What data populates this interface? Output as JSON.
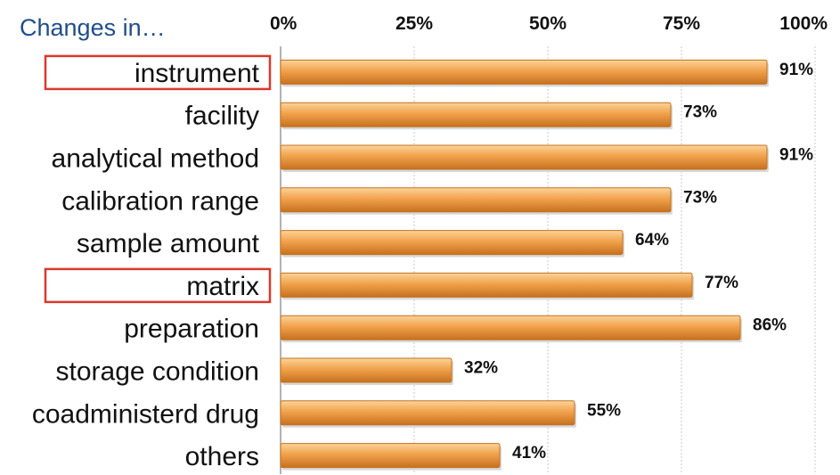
{
  "chart_data": {
    "type": "bar",
    "orientation": "horizontal",
    "title": "Changes in…",
    "categories": [
      "instrument",
      "facility",
      "analytical method",
      "calibration range",
      "sample amount",
      "matrix",
      "preparation",
      "storage condition",
      "coadministerd drug",
      "others"
    ],
    "values": [
      91,
      73,
      91,
      73,
      64,
      77,
      86,
      32,
      55,
      41
    ],
    "data_labels": [
      "91%",
      "73%",
      "91%",
      "73%",
      "64%",
      "77%",
      "86%",
      "32%",
      "55%",
      "41%"
    ],
    "x_ticks": [
      "0%",
      "25%",
      "50%",
      "75%",
      "100%"
    ],
    "xlim": [
      0,
      100
    ],
    "x_axis_position": "top",
    "grid": true,
    "highlighted_categories": [
      "instrument",
      "matrix"
    ],
    "colors": {
      "bar_light": "#fbd49a",
      "bar_main": "#f1a24b",
      "bar_dark": "#c6711f",
      "highlight_box": "#d9392b",
      "heading": "#1f4e8c",
      "grid": "#c8c8c8"
    }
  }
}
